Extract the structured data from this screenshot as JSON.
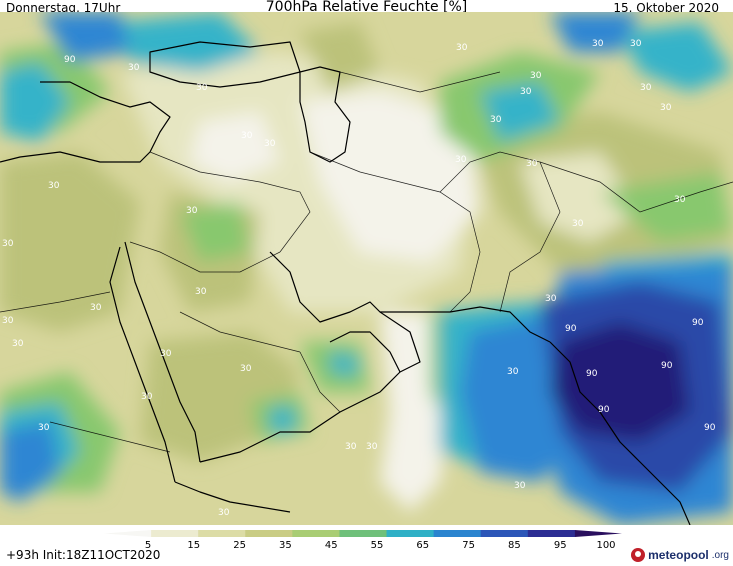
{
  "header": {
    "left": "Donnerstag, 17Uhr",
    "title": "700hPa Relative Feuchte [%]",
    "date": "15. Oktober 2020"
  },
  "footer": {
    "run": "+93h Init:18Z11OCT2020",
    "brand_name": "meteopool",
    "brand_tld": ".org"
  },
  "colorbar": {
    "ticks": [
      "5",
      "15",
      "25",
      "35",
      "45",
      "55",
      "65",
      "75",
      "85",
      "95",
      "100"
    ],
    "colors": [
      "#f7f7f4",
      "#ecebd0",
      "#dcdca6",
      "#c9cc84",
      "#a9cd74",
      "#6fc07a",
      "#2fb0c6",
      "#2a84cf",
      "#2c56b8",
      "#2c2d93",
      "#2a0f5e"
    ]
  },
  "map": {
    "contour_labels": [
      "30",
      "90"
    ],
    "palette": {
      "dry": "#f4f3ea",
      "light": "#e6e6c2",
      "tan": "#d7d69c",
      "olive": "#bcc27a",
      "green": "#88c86e",
      "teal": "#36b3c9",
      "blue": "#2f86d3",
      "deep": "#2b4aa8",
      "navy": "#231f78",
      "border": "#000000"
    }
  }
}
